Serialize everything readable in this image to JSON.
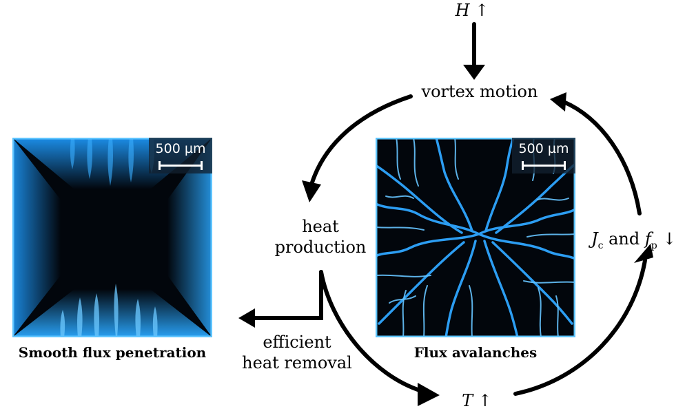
{
  "panels": {
    "smooth": {
      "scale_label": "500 µm",
      "caption": "Smooth flux penetration"
    },
    "avalanche": {
      "scale_label": "500 µm",
      "caption": "Flux avalanches"
    }
  },
  "cycle": {
    "field": {
      "symbol": "H",
      "arrow": "↑"
    },
    "vortex": "vortex motion",
    "heat_line1": "heat",
    "heat_line2": "production",
    "temp": {
      "symbol": "T",
      "arrow": "↑"
    },
    "jc": {
      "j": "J",
      "j_sub": "c",
      "and": "and",
      "f": "f",
      "f_sub": "p",
      "arrow": "↓"
    }
  },
  "removal": {
    "line1": "efficient",
    "line2": "heat removal"
  },
  "colors": {
    "panel_dark": "#02060c",
    "flux_blue": "#1e9cff",
    "flux_light": "#7fd0ff",
    "arrow": "#000000"
  }
}
